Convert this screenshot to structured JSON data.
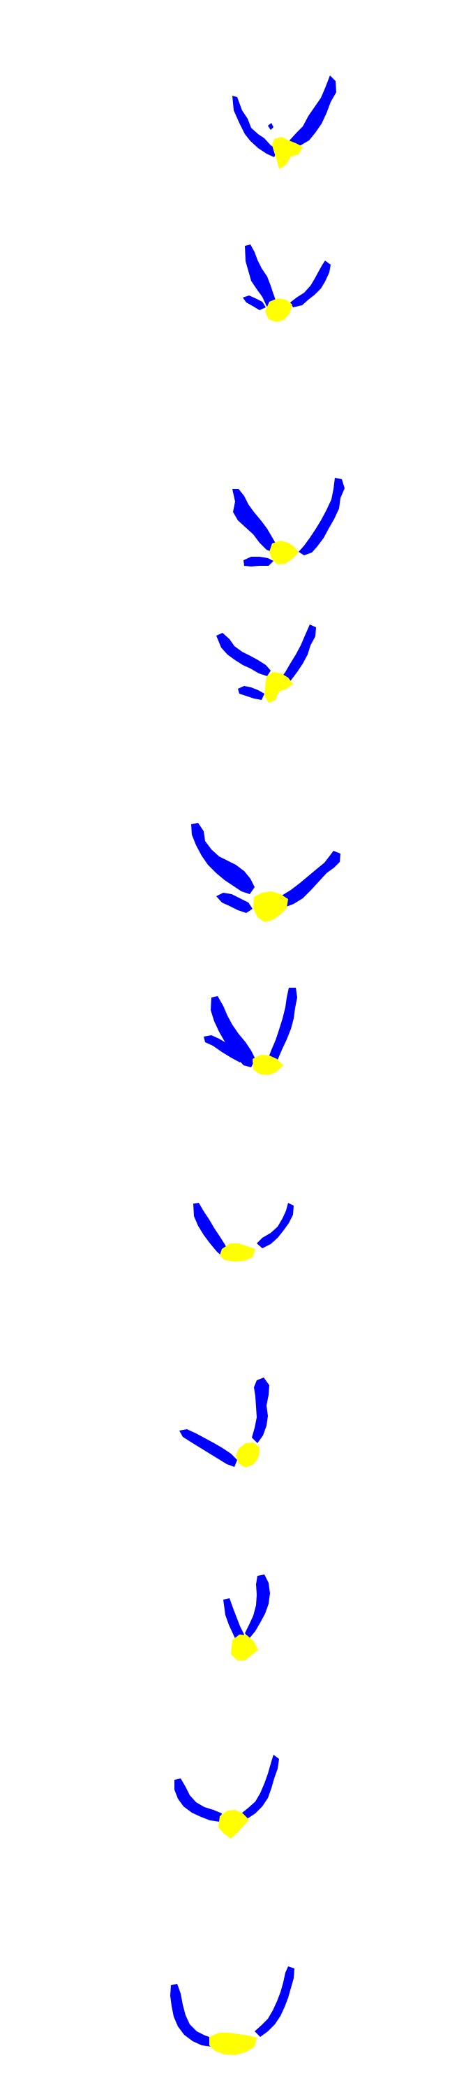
{
  "colors": {
    "background": "#ffffff",
    "blue": "#0000ff",
    "yellow": "#ffff00"
  },
  "figure": {
    "panel_count": 11,
    "panels": [
      {
        "id": 1,
        "shape": "v-shape with yellow base"
      },
      {
        "id": 2,
        "shape": "v-shape with yellow base"
      },
      {
        "id": 3,
        "shape": "v-shape with yellow base"
      },
      {
        "id": 4,
        "shape": "v-shape with yellow base"
      },
      {
        "id": 5,
        "shape": "v-shape with yellow base"
      },
      {
        "id": 6,
        "shape": "v-shape with yellow base"
      },
      {
        "id": 7,
        "shape": "u-shape with yellow base"
      },
      {
        "id": 8,
        "shape": "angled shape with yellow base"
      },
      {
        "id": 9,
        "shape": "narrow v-shape with yellow base"
      },
      {
        "id": 10,
        "shape": "u-shape with yellow base"
      },
      {
        "id": 11,
        "shape": "u-shape with yellow base"
      }
    ]
  }
}
